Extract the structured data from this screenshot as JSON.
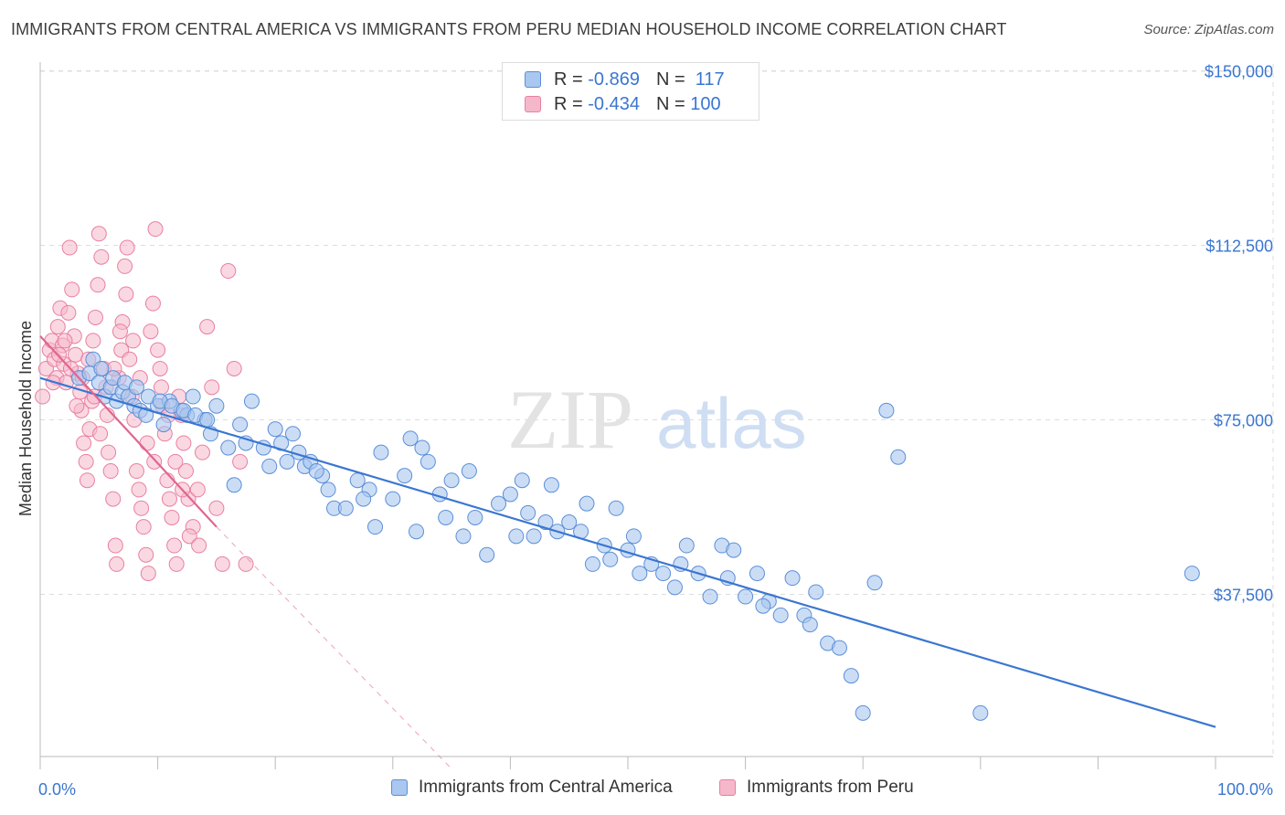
{
  "title": "IMMIGRANTS FROM CENTRAL AMERICA VS IMMIGRANTS FROM PERU MEDIAN HOUSEHOLD INCOME CORRELATION CHART",
  "source": "Source: ZipAtlas.com",
  "watermark": {
    "zip": "ZIP",
    "atlas": "atlas"
  },
  "legend": {
    "series1": {
      "r_label": "R =",
      "r_value": "-0.869",
      "n_label": "N =",
      "n_value": "117"
    },
    "series2": {
      "r_label": "R =",
      "r_value": "-0.434",
      "n_label": "N =",
      "n_value": "100"
    }
  },
  "colors": {
    "blue_fill": "#a9c7ef",
    "blue_stroke": "#5b8fd9",
    "blue_line": "#3a76d1",
    "pink_fill": "#f5b8cb",
    "pink_stroke": "#e87fa3",
    "pink_line": "#e0668f",
    "grid": "#dddddd",
    "axis_text": "#3a76d1"
  },
  "chart_data": {
    "type": "scatter",
    "title": "IMMIGRANTS FROM CENTRAL AMERICA VS IMMIGRANTS FROM PERU MEDIAN HOUSEHOLD INCOME CORRELATION CHART",
    "xlabel": "",
    "ylabel": "Median Household Income",
    "xlim": [
      0,
      100
    ],
    "ylim": [
      0,
      155000
    ],
    "x_tick_labels": [
      "0.0%",
      "100.0%"
    ],
    "y_ticks": [
      37500,
      75000,
      112500,
      150000
    ],
    "y_tick_labels": [
      "$37,500",
      "$75,000",
      "$112,500",
      "$150,000"
    ],
    "grid": true,
    "legend_position": "top-center",
    "series": [
      {
        "name": "Immigrants from Central America",
        "r": -0.869,
        "n": 117,
        "trend": {
          "x": [
            0,
            100
          ],
          "y": [
            84000,
            9000
          ]
        },
        "points": [
          [
            3.3,
            84000
          ],
          [
            4.2,
            85000
          ],
          [
            5.0,
            83000
          ],
          [
            5.5,
            80000
          ],
          [
            6.0,
            82000
          ],
          [
            6.5,
            79000
          ],
          [
            7.0,
            81000
          ],
          [
            7.5,
            80000
          ],
          [
            8.0,
            78000
          ],
          [
            8.5,
            77000
          ],
          [
            9.0,
            76000
          ],
          [
            10,
            78000
          ],
          [
            10.5,
            74000
          ],
          [
            11,
            79000
          ],
          [
            12,
            77000
          ],
          [
            12.5,
            76000
          ],
          [
            13,
            80000
          ],
          [
            14,
            75000
          ],
          [
            14.5,
            72000
          ],
          [
            15,
            78000
          ],
          [
            16,
            69000
          ],
          [
            16.5,
            61000
          ],
          [
            17,
            74000
          ],
          [
            17.5,
            70000
          ],
          [
            18,
            79000
          ],
          [
            19,
            69000
          ],
          [
            19.5,
            65000
          ],
          [
            20,
            73000
          ],
          [
            20.5,
            70000
          ],
          [
            21,
            66000
          ],
          [
            22,
            68000
          ],
          [
            22.5,
            65000
          ],
          [
            23,
            66000
          ],
          [
            24,
            63000
          ],
          [
            24.5,
            60000
          ],
          [
            25,
            56000
          ],
          [
            26,
            56000
          ],
          [
            27,
            62000
          ],
          [
            28,
            60000
          ],
          [
            28.5,
            52000
          ],
          [
            29,
            68000
          ],
          [
            30,
            58000
          ],
          [
            31,
            63000
          ],
          [
            32,
            51000
          ],
          [
            32.5,
            69000
          ],
          [
            33,
            66000
          ],
          [
            34,
            59000
          ],
          [
            34.5,
            54000
          ],
          [
            35,
            62000
          ],
          [
            36,
            50000
          ],
          [
            37,
            54000
          ],
          [
            38,
            46000
          ],
          [
            39,
            57000
          ],
          [
            40,
            59000
          ],
          [
            40.5,
            50000
          ],
          [
            41,
            62000
          ],
          [
            42,
            50000
          ],
          [
            43,
            53000
          ],
          [
            43.5,
            61000
          ],
          [
            44,
            51000
          ],
          [
            45,
            53000
          ],
          [
            46,
            51000
          ],
          [
            47,
            44000
          ],
          [
            48,
            48000
          ],
          [
            48.5,
            45000
          ],
          [
            49,
            56000
          ],
          [
            50,
            47000
          ],
          [
            51,
            42000
          ],
          [
            52,
            44000
          ],
          [
            53,
            42000
          ],
          [
            54,
            39000
          ],
          [
            55,
            48000
          ],
          [
            56,
            42000
          ],
          [
            57,
            37000
          ],
          [
            58,
            48000
          ],
          [
            59,
            47000
          ],
          [
            60,
            37000
          ],
          [
            61,
            42000
          ],
          [
            62,
            36000
          ],
          [
            63,
            33000
          ],
          [
            64,
            41000
          ],
          [
            65,
            33000
          ],
          [
            66,
            38000
          ],
          [
            67,
            27000
          ],
          [
            68,
            26000
          ],
          [
            69,
            20000
          ],
          [
            70,
            12000
          ],
          [
            71,
            40000
          ],
          [
            72,
            77000
          ],
          [
            73,
            67000
          ],
          [
            80,
            12000
          ],
          [
            98,
            42000
          ],
          [
            4.5,
            88000
          ],
          [
            5.2,
            86000
          ],
          [
            6.2,
            84000
          ],
          [
            7.2,
            83000
          ],
          [
            8.2,
            82000
          ],
          [
            9.2,
            80000
          ],
          [
            10.2,
            79000
          ],
          [
            11.2,
            78000
          ],
          [
            12.2,
            77000
          ],
          [
            13.2,
            76000
          ],
          [
            14.2,
            75000
          ],
          [
            21.5,
            72000
          ],
          [
            23.5,
            64000
          ],
          [
            27.5,
            58000
          ],
          [
            31.5,
            71000
          ],
          [
            36.5,
            64000
          ],
          [
            41.5,
            55000
          ],
          [
            46.5,
            57000
          ],
          [
            50.5,
            50000
          ],
          [
            54.5,
            44000
          ],
          [
            58.5,
            41000
          ],
          [
            61.5,
            35000
          ],
          [
            65.5,
            31000
          ]
        ]
      },
      {
        "name": "Immigrants from Peru",
        "r": -0.434,
        "n": 100,
        "trend": {
          "x": [
            0,
            15
          ],
          "y": [
            93000,
            52000
          ]
        },
        "trend_dashed": {
          "x": [
            15,
            35
          ],
          "y": [
            52000,
            0
          ]
        },
        "points": [
          [
            0.2,
            80000
          ],
          [
            0.5,
            86000
          ],
          [
            0.8,
            90000
          ],
          [
            1.0,
            92000
          ],
          [
            1.2,
            88000
          ],
          [
            1.4,
            84000
          ],
          [
            1.5,
            95000
          ],
          [
            1.7,
            99000
          ],
          [
            1.9,
            91000
          ],
          [
            2.0,
            87000
          ],
          [
            2.2,
            83000
          ],
          [
            2.4,
            98000
          ],
          [
            2.5,
            112000
          ],
          [
            2.7,
            103000
          ],
          [
            2.9,
            93000
          ],
          [
            3.0,
            89000
          ],
          [
            3.2,
            85000
          ],
          [
            3.4,
            81000
          ],
          [
            3.5,
            77000
          ],
          [
            3.7,
            70000
          ],
          [
            3.9,
            66000
          ],
          [
            4.0,
            62000
          ],
          [
            4.2,
            73000
          ],
          [
            4.4,
            79000
          ],
          [
            4.5,
            92000
          ],
          [
            4.7,
            97000
          ],
          [
            4.9,
            104000
          ],
          [
            5.0,
            115000
          ],
          [
            5.2,
            110000
          ],
          [
            5.4,
            86000
          ],
          [
            5.6,
            82000
          ],
          [
            5.8,
            68000
          ],
          [
            6.0,
            64000
          ],
          [
            6.2,
            58000
          ],
          [
            6.4,
            48000
          ],
          [
            6.5,
            44000
          ],
          [
            6.7,
            84000
          ],
          [
            6.9,
            90000
          ],
          [
            7.0,
            96000
          ],
          [
            7.2,
            108000
          ],
          [
            7.4,
            112000
          ],
          [
            7.6,
            88000
          ],
          [
            7.8,
            80000
          ],
          [
            8.0,
            75000
          ],
          [
            8.2,
            64000
          ],
          [
            8.4,
            60000
          ],
          [
            8.6,
            56000
          ],
          [
            8.8,
            52000
          ],
          [
            9.0,
            46000
          ],
          [
            9.2,
            42000
          ],
          [
            9.4,
            94000
          ],
          [
            9.6,
            100000
          ],
          [
            9.8,
            116000
          ],
          [
            10.0,
            90000
          ],
          [
            10.2,
            86000
          ],
          [
            10.4,
            78000
          ],
          [
            10.6,
            72000
          ],
          [
            10.8,
            62000
          ],
          [
            11.0,
            58000
          ],
          [
            11.2,
            54000
          ],
          [
            11.4,
            48000
          ],
          [
            11.6,
            44000
          ],
          [
            11.8,
            80000
          ],
          [
            12.0,
            76000
          ],
          [
            12.2,
            70000
          ],
          [
            12.4,
            64000
          ],
          [
            12.6,
            58000
          ],
          [
            13.0,
            52000
          ],
          [
            13.4,
            60000
          ],
          [
            13.8,
            68000
          ],
          [
            14.2,
            95000
          ],
          [
            14.6,
            82000
          ],
          [
            15.0,
            56000
          ],
          [
            15.5,
            44000
          ],
          [
            16.0,
            107000
          ],
          [
            16.5,
            86000
          ],
          [
            17.0,
            66000
          ],
          [
            17.5,
            44000
          ],
          [
            1.1,
            83000
          ],
          [
            1.6,
            89000
          ],
          [
            2.1,
            92000
          ],
          [
            2.6,
            86000
          ],
          [
            3.1,
            78000
          ],
          [
            3.6,
            84000
          ],
          [
            4.1,
            88000
          ],
          [
            4.6,
            80000
          ],
          [
            5.1,
            72000
          ],
          [
            5.7,
            76000
          ],
          [
            6.3,
            86000
          ],
          [
            6.8,
            94000
          ],
          [
            7.3,
            102000
          ],
          [
            7.9,
            92000
          ],
          [
            8.5,
            84000
          ],
          [
            9.1,
            70000
          ],
          [
            9.7,
            66000
          ],
          [
            10.3,
            82000
          ],
          [
            10.9,
            76000
          ],
          [
            11.5,
            66000
          ],
          [
            12.1,
            60000
          ],
          [
            12.7,
            50000
          ],
          [
            13.5,
            48000
          ]
        ]
      }
    ]
  },
  "bottom_legend": {
    "series1_label": "Immigrants from Central America",
    "series2_label": "Immigrants from Peru"
  },
  "axis_labels": {
    "y": "Median Household Income",
    "x_left": "0.0%",
    "x_right": "100.0%",
    "y_ticks": [
      "$150,000",
      "$112,500",
      "$75,000",
      "$37,500"
    ]
  }
}
